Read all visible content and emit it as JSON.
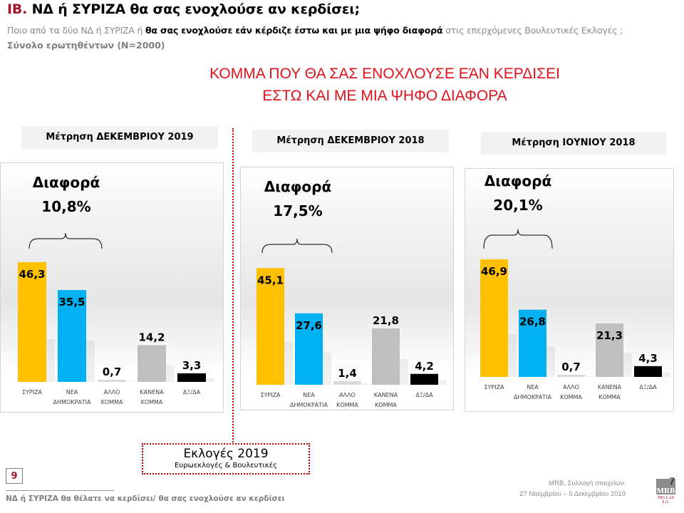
{
  "header": {
    "title_prefix": "ΙΒ.",
    "title_text": "ΝΔ  ή ΣΥΡΙΖΑ θα σας ενοχλούσε αν κερδίσει;",
    "subtitle_start": "Ποιο από τα δύο ΝΔ ή ΣΥΡΙΖΑ ή ",
    "subtitle_bold": "θα σας ενοχλούσε εάν κέρδιζε έστω και με μια ψήφο διαφορά",
    "subtitle_end": " στις επερχόμενες Βουλευτικές Εκλογές ;",
    "sample": "Σύνολο ερωτηθέντων (N=2000)"
  },
  "headline": {
    "line1": "ΚΟΜΜΑ ΠΟΥ ΘΑ ΣΑΣ ΕΝΟΧΛΟΥΣΕ ΕΆΝ ΚΕΡΔΙΣΕΙ",
    "line2": "ΕΣΤΩ ΚΑΙ ΜΕ ΜΙΑ ΨΗΦΟ ΔΙΑΦΟΡΑ"
  },
  "colors": {
    "syriza": "#ffc000",
    "nd": "#00b0f0",
    "other": "#d9d9d9",
    "none": "#bfbfbf",
    "dk": "#000000",
    "accent_red": "#e0121b",
    "dotted_red": "#c00000"
  },
  "chart_data": [
    {
      "type": "bar",
      "title": "Μέτρηση ΔΕΚΕΜΒΡΙΟΥ 2019",
      "diff_label": "Διαφορά",
      "diff_value": "10,8%",
      "categories": [
        "ΣΥΡΙΖΑ",
        "ΝΕΑ ΔΗΜΟΚΡΑΤΙΑ",
        "ΑΛΛΟ ΚΟΜΜΑ",
        "ΚΑΝΕΝΑ ΚΟΜΜΑ",
        "ΔΞ/ΔΑ"
      ],
      "values": [
        46.3,
        35.5,
        0.7,
        14.2,
        3.3
      ],
      "value_labels": [
        "46,3",
        "35,5",
        "0,7",
        "14,2",
        "3,3"
      ],
      "ylim": [
        0,
        50
      ],
      "grid": false
    },
    {
      "type": "bar",
      "title": "Μέτρηση ΔΕΚΕΜΒΡΙΟΥ 2018",
      "diff_label": "Διαφορά",
      "diff_value": "17,5%",
      "categories": [
        "ΣΥΡΙΖΑ",
        "ΝΕΑ ΔΗΜΟΚΡΑΤΙΑ",
        "ΑΛΛΟ ΚΟΜΜΑ",
        "ΚΑΝΕΝΑ ΚΟΜΜΑ",
        "ΔΞ/ΔΑ"
      ],
      "values": [
        45.1,
        27.6,
        1.4,
        21.8,
        4.2
      ],
      "value_labels": [
        "45,1",
        "27,6",
        "1,4",
        "21,8",
        "4,2"
      ],
      "ylim": [
        0,
        50
      ],
      "grid": false
    },
    {
      "type": "bar",
      "title": "Μέτρηση ΙΟΥΝΙΟΥ 2018",
      "diff_label": "Διαφορά",
      "diff_value": "20,1%",
      "categories": [
        "ΣΥΡΙΖΑ",
        "ΝΕΑ ΔΗΜΟΚΡΑΤΙΑ",
        "ΑΛΛΟ ΚΟΜΜΑ",
        "ΚΑΝΕΝΑ ΚΟΜΜΑ",
        "ΔΞ/ΔΑ"
      ],
      "values": [
        46.9,
        26.8,
        0.7,
        21.3,
        4.3
      ],
      "value_labels": [
        "46,9",
        "26,8",
        "0,7",
        "21,3",
        "4,3"
      ],
      "ylim": [
        0,
        50
      ],
      "grid": false
    }
  ],
  "elections_box": {
    "title": "Εκλογές 2019",
    "subtitle": "Ευρωεκλογές & Βουλευτικές"
  },
  "footer": {
    "section_number": "9",
    "footnote": "ΝΔ ή ΣΥΡΙΖΑ θα θέλατε να κερδίσει/ θα σας ενοχλούσε αν κερδίσει",
    "source_line1": "MRB, Συλλογή στοιχείων:",
    "source_line2": "27 Νοεμβρίου – 5 Δεκεμβρίου 2019",
    "page_number": "7",
    "logo_text": "MRB",
    "logo_subtext": "HELLAS S.A."
  }
}
